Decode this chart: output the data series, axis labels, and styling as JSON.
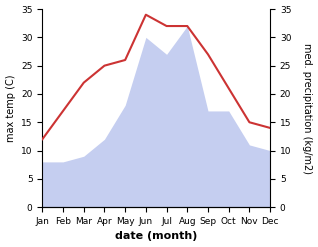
{
  "months": [
    "Jan",
    "Feb",
    "Mar",
    "Apr",
    "May",
    "Jun",
    "Jul",
    "Aug",
    "Sep",
    "Oct",
    "Nov",
    "Dec"
  ],
  "temperature": [
    12,
    17,
    22,
    25,
    26,
    34,
    32,
    32,
    27,
    21,
    15,
    14
  ],
  "precipitation": [
    8,
    8,
    9,
    12,
    18,
    30,
    27,
    32,
    17,
    17,
    11,
    10
  ],
  "temp_color": "#cc3333",
  "precip_color": "#c5cef0",
  "background_color": "#ffffff",
  "ylabel_left": "max temp (C)",
  "ylabel_right": "med. precipitation (kg/m2)",
  "xlabel": "date (month)",
  "ylim_left": [
    0,
    35
  ],
  "ylim_right": [
    0,
    35
  ],
  "yticks_left": [
    0,
    5,
    10,
    15,
    20,
    25,
    30,
    35
  ],
  "yticks_right": [
    0,
    5,
    10,
    15,
    20,
    25,
    30,
    35
  ],
  "label_fontsize": 7,
  "tick_fontsize": 6.5,
  "xlabel_fontsize": 8,
  "line_width": 1.5
}
